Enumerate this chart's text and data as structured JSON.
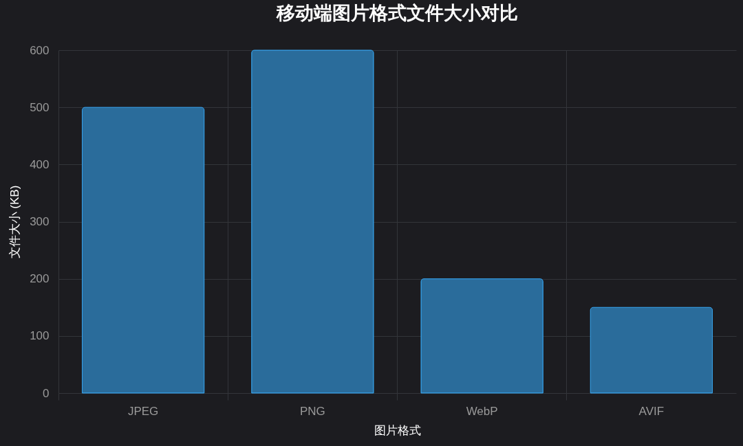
{
  "chart_data": {
    "type": "bar",
    "title": "移动端图片格式文件大小对比",
    "xlabel": "图片格式",
    "ylabel": "文件大小 (KB)",
    "categories": [
      "JPEG",
      "PNG",
      "WebP",
      "AVIF"
    ],
    "values": [
      500,
      600,
      200,
      150
    ],
    "color": "#2a6c9b",
    "ylim": [
      0,
      600
    ],
    "yticks": [
      0,
      100,
      200,
      300,
      400,
      500,
      600
    ],
    "grid": true
  }
}
